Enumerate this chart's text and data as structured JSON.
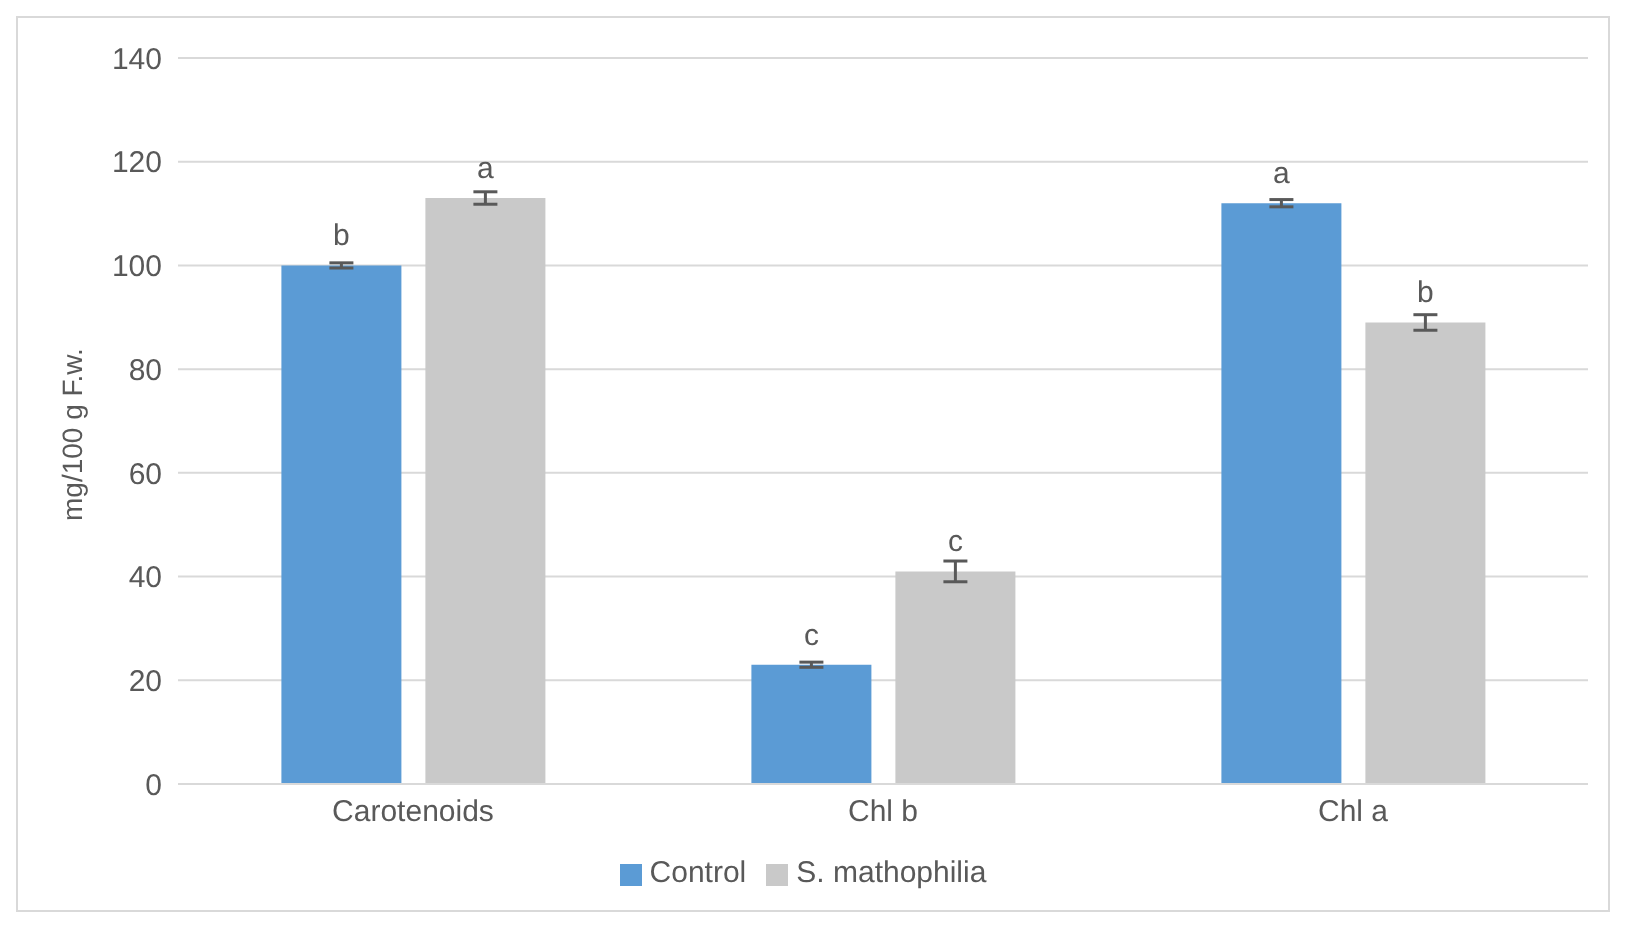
{
  "chart_data": {
    "type": "bar",
    "ylabel": "mg/100 g F.w.",
    "categories": [
      "Carotenoids",
      "Chl b",
      "Chl a"
    ],
    "series": [
      {
        "name": "Control",
        "color": "#5b9bd5",
        "values": [
          100,
          23,
          112
        ],
        "errors": [
          0.5,
          0.5,
          0.7
        ],
        "value_labels": [
          "b",
          "c",
          "a"
        ]
      },
      {
        "name": "S. mathophilia",
        "color": "#c9c9c9",
        "values": [
          113,
          41,
          89
        ],
        "errors": [
          1.2,
          2,
          1.5
        ],
        "value_labels": [
          "a",
          "c",
          "b"
        ]
      }
    ],
    "ylim": [
      0,
      140
    ],
    "yticks": [
      0,
      20,
      40,
      60,
      80,
      100,
      120,
      140
    ],
    "grid": "y",
    "legend": "bottom"
  }
}
